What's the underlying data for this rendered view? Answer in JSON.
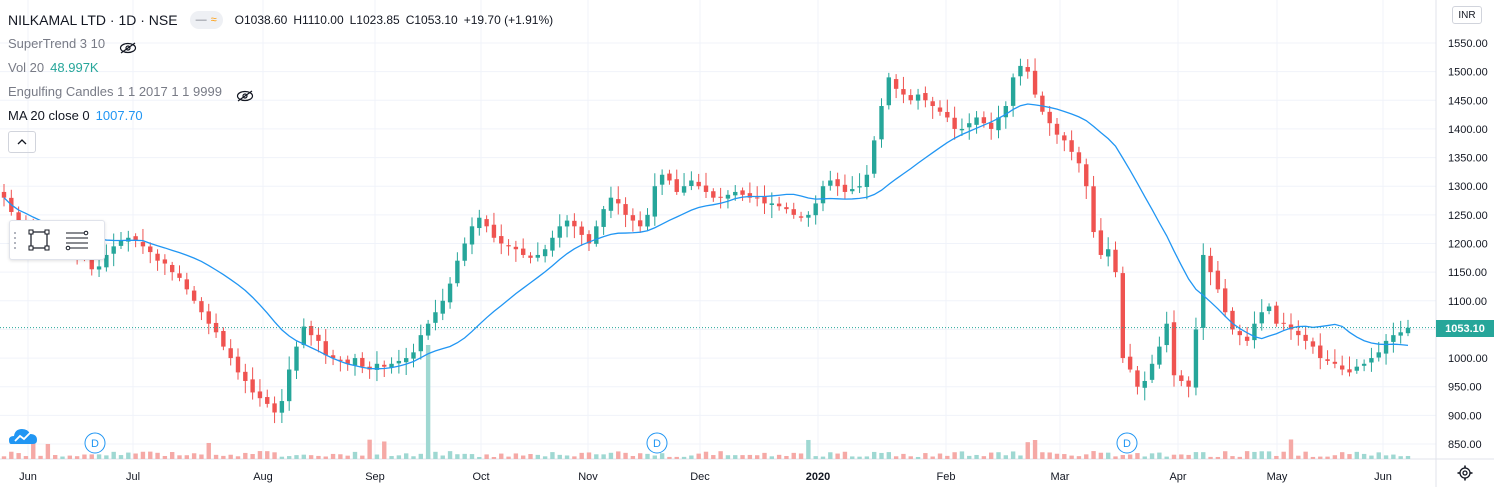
{
  "header": {
    "symbol": "NILKAMAL LTD · 1D · NSE",
    "ohlc": {
      "open": "O1038.60",
      "high": "H1110.00",
      "low": "L1023.85",
      "close": "C1053.10",
      "change": "+19.70 (+1.91%)"
    }
  },
  "indicators": [
    {
      "name": "SuperTrend 3 10",
      "value": "",
      "hidden": true
    },
    {
      "name": "Vol 20",
      "value": "48.997K",
      "hidden": false
    },
    {
      "name": "Engulfing Candles 1 1 2017 1 1 9999",
      "value": "",
      "hidden": true
    },
    {
      "name": "MA 20 close 0",
      "value": "1007.70",
      "hidden": false
    }
  ],
  "currency": "INR",
  "last_price": "1053.10",
  "colors": {
    "up": "#26a69a",
    "down": "#ef5350",
    "ma": "#2196f3",
    "vol_up": "#9fd8d2",
    "vol_down": "#f5a9a6",
    "grid": "#f0f3fa"
  },
  "icons": [
    "eye-off-icon",
    "rectangle-tool-icon",
    "lines-tool-icon",
    "chevron-up-icon",
    "tradingview-logo-icon",
    "gear-icon",
    "dividend-marker-icon"
  ],
  "chart_data": {
    "type": "candlestick",
    "y_axis": {
      "min": 850,
      "max": 1550,
      "ticks": [
        850,
        900,
        950,
        1000,
        1050,
        1100,
        1150,
        1200,
        1250,
        1300,
        1350,
        1400,
        1450,
        1500,
        1550
      ]
    },
    "x_axis_labels": [
      "Jun",
      "Jul",
      "Aug",
      "Sep",
      "Oct",
      "Nov",
      "Dec",
      "2020",
      "Feb",
      "Mar",
      "Apr",
      "May",
      "Jun"
    ],
    "dividend_markers": [
      "D",
      "D",
      "D"
    ],
    "close_series": [
      1280,
      1255,
      1240,
      1235,
      1220,
      1210,
      1200,
      1195,
      1205,
      1200,
      1180,
      1175,
      1155,
      1160,
      1180,
      1195,
      1205,
      1210,
      1205,
      1195,
      1185,
      1170,
      1165,
      1150,
      1140,
      1120,
      1100,
      1080,
      1060,
      1045,
      1020,
      1000,
      975,
      960,
      940,
      930,
      920,
      905,
      925,
      980,
      1020,
      1055,
      1040,
      1030,
      1005,
      1000,
      995,
      990,
      1000,
      985,
      980,
      990,
      985,
      990,
      995,
      1000,
      1010,
      1040,
      1060,
      1080,
      1100,
      1130,
      1170,
      1200,
      1230,
      1245,
      1230,
      1210,
      1200,
      1195,
      1190,
      1180,
      1175,
      1180,
      1190,
      1210,
      1230,
      1240,
      1230,
      1215,
      1200,
      1230,
      1260,
      1280,
      1270,
      1250,
      1240,
      1230,
      1250,
      1300,
      1320,
      1310,
      1290,
      1300,
      1310,
      1300,
      1290,
      1280,
      1280,
      1285,
      1290,
      1285,
      1280,
      1280,
      1270,
      1270,
      1265,
      1260,
      1250,
      1245,
      1250,
      1270,
      1300,
      1310,
      1300,
      1290,
      1295,
      1300,
      1320,
      1380,
      1440,
      1490,
      1470,
      1460,
      1450,
      1460,
      1450,
      1440,
      1430,
      1420,
      1400,
      1400,
      1410,
      1420,
      1410,
      1400,
      1420,
      1440,
      1490,
      1510,
      1500,
      1460,
      1430,
      1410,
      1390,
      1380,
      1360,
      1340,
      1300,
      1220,
      1180,
      1190,
      1150,
      1000,
      980,
      950,
      960,
      990,
      1020,
      1060,
      970,
      960,
      950,
      1050,
      1180,
      1150,
      1120,
      1080,
      1050,
      1040,
      1030,
      1060,
      1080,
      1090,
      1060,
      1060,
      1050,
      1040,
      1030,
      1020,
      1000,
      995,
      990,
      980,
      975,
      985,
      990,
      1000,
      1010,
      1030,
      1040,
      1045,
      1053
    ]
  }
}
